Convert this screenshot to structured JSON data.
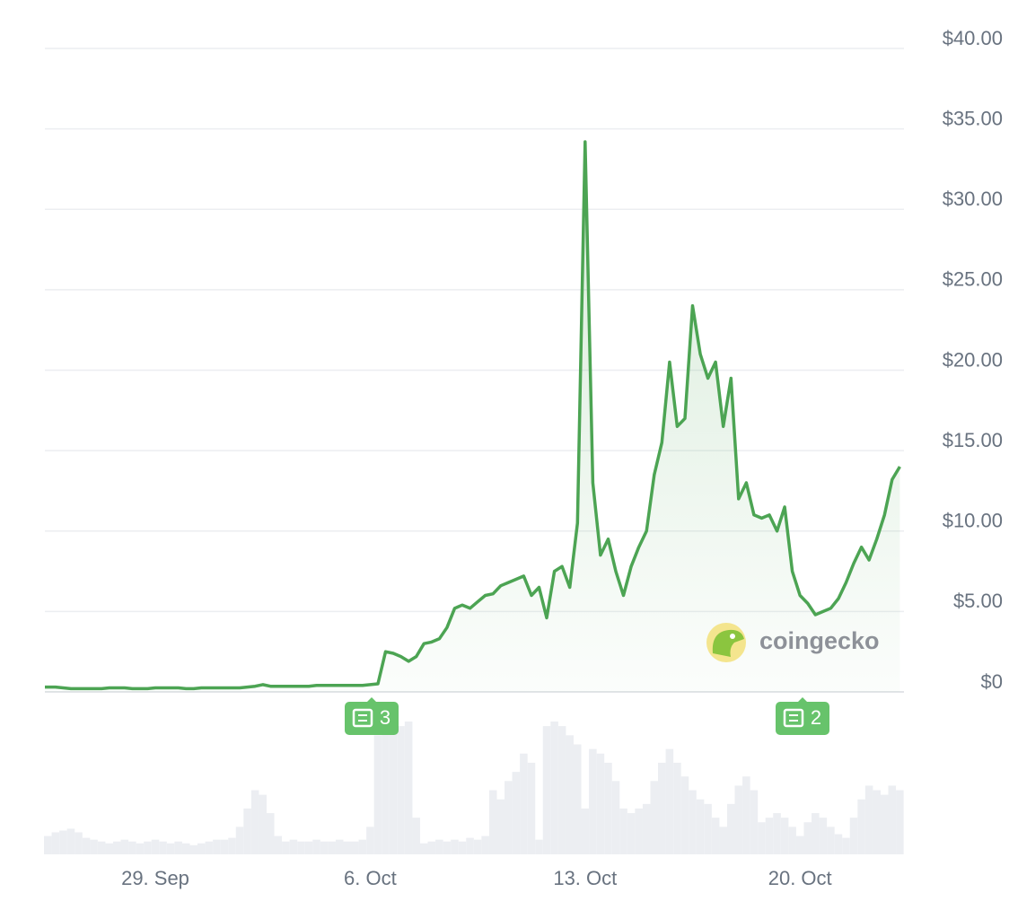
{
  "chart_data": {
    "type": "line",
    "categories": [
      null,
      null,
      null,
      null,
      null,
      null,
      null,
      null,
      null,
      null,
      null,
      null,
      null,
      null,
      "29. Sep",
      null,
      null,
      null,
      null,
      null,
      null,
      null,
      null,
      null,
      null,
      null,
      null,
      null,
      null,
      null,
      null,
      null,
      null,
      null,
      null,
      null,
      null,
      null,
      null,
      null,
      null,
      null,
      "6. Oct",
      null,
      null,
      null,
      null,
      null,
      null,
      null,
      null,
      null,
      null,
      null,
      null,
      null,
      null,
      null,
      null,
      null,
      null,
      null,
      null,
      null,
      null,
      null,
      null,
      null,
      null,
      null,
      "13. Oct",
      null,
      null,
      null,
      null,
      null,
      null,
      null,
      null,
      null,
      null,
      null,
      null,
      null,
      null,
      null,
      null,
      null,
      null,
      null,
      null,
      null,
      null,
      null,
      null,
      null,
      null,
      null,
      "20. Oct",
      null,
      null,
      null,
      null,
      null,
      null,
      null,
      null,
      null,
      null,
      null,
      null,
      null
    ],
    "values": [
      0.3,
      0.3,
      0.25,
      0.2,
      0.2,
      0.2,
      0.2,
      0.2,
      0.25,
      0.25,
      0.25,
      0.2,
      0.2,
      0.2,
      0.25,
      0.25,
      0.25,
      0.25,
      0.2,
      0.2,
      0.25,
      0.25,
      0.25,
      0.25,
      0.25,
      0.25,
      0.3,
      0.35,
      0.45,
      0.35,
      0.35,
      0.35,
      0.35,
      0.35,
      0.35,
      0.4,
      0.4,
      0.4,
      0.4,
      0.4,
      0.4,
      0.4,
      0.45,
      0.5,
      2.5,
      2.4,
      2.2,
      1.9,
      2.2,
      3.0,
      3.1,
      3.3,
      4.0,
      5.2,
      5.4,
      5.2,
      5.6,
      6.0,
      6.1,
      6.6,
      6.8,
      7.0,
      7.2,
      6.0,
      6.5,
      4.6,
      7.5,
      7.8,
      6.5,
      10.5,
      34.2,
      13.0,
      8.5,
      9.5,
      7.5,
      6.0,
      7.8,
      9.0,
      10.0,
      13.5,
      15.5,
      20.5,
      16.5,
      17.0,
      24.0,
      21.0,
      19.5,
      20.5,
      16.5,
      19.5,
      12.0,
      13.0,
      11.0,
      10.8,
      11.0,
      10.0,
      11.5,
      7.5,
      6.0,
      5.5,
      4.8,
      5.0,
      5.2,
      5.8,
      6.8,
      8.0,
      9.0,
      8.2,
      9.5,
      11.0,
      13.2,
      14.0
    ],
    "volume": [
      20,
      24,
      26,
      28,
      24,
      18,
      16,
      14,
      12,
      14,
      16,
      14,
      12,
      14,
      16,
      14,
      12,
      14,
      12,
      10,
      12,
      14,
      16,
      16,
      18,
      30,
      50,
      70,
      65,
      45,
      20,
      14,
      16,
      14,
      14,
      16,
      14,
      14,
      16,
      14,
      14,
      16,
      30,
      130,
      145,
      140,
      140,
      145,
      40,
      12,
      14,
      16,
      14,
      16,
      14,
      18,
      16,
      20,
      70,
      60,
      80,
      90,
      110,
      100,
      16,
      140,
      145,
      140,
      130,
      120,
      50,
      115,
      110,
      100,
      80,
      50,
      45,
      50,
      55,
      80,
      100,
      115,
      100,
      85,
      70,
      60,
      55,
      40,
      30,
      55,
      75,
      85,
      70,
      35,
      40,
      45,
      40,
      30,
      20,
      35,
      45,
      40,
      30,
      22,
      18,
      40,
      60,
      75,
      70,
      65,
      75,
      70
    ],
    "color": "#4ca453",
    "ylim": [
      0,
      40
    ],
    "yticks": [
      {
        "value": 0,
        "label": "$0"
      },
      {
        "value": 5,
        "label": "$5.00"
      },
      {
        "value": 10,
        "label": "$10.00"
      },
      {
        "value": 15,
        "label": "$15.00"
      },
      {
        "value": 20,
        "label": "$20.00"
      },
      {
        "value": 25,
        "label": "$25.00"
      },
      {
        "value": 30,
        "label": "$30.00"
      },
      {
        "value": 35,
        "label": "$35.00"
      },
      {
        "value": 40,
        "label": "$40.00"
      }
    ],
    "grid": true,
    "annotations": [
      "3",
      "2"
    ],
    "watermark": "coingecko"
  }
}
